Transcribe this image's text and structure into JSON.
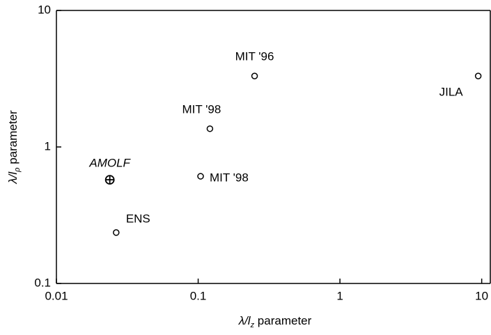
{
  "chart_data": {
    "type": "scatter",
    "x_label": {
      "main": "λ/l",
      "sub": "z",
      "rest": " parameter"
    },
    "y_label": {
      "main": "λ/l",
      "sub": "ρ",
      "rest": " parameter"
    },
    "x": [
      0.25,
      9.45,
      0.121,
      0.104,
      0.0238,
      0.0264
    ],
    "values": [
      3.31,
      3.31,
      1.36,
      0.61,
      0.575,
      0.236
    ],
    "point_labels": [
      "MIT '96",
      "JILA",
      "MIT '98",
      "MIT '98",
      "AMOLF",
      "ENS"
    ],
    "markers": [
      "circle",
      "circle",
      "circle",
      "circle",
      "crosshair",
      "circle"
    ],
    "xlim": [
      0.01,
      11.5
    ],
    "ylim": [
      0.1,
      10
    ],
    "xticks": [
      0.01,
      0.1,
      1,
      10
    ],
    "yticks": [
      0.1,
      1,
      10
    ],
    "xscale": "log",
    "yscale": "log",
    "color": "#000000"
  }
}
